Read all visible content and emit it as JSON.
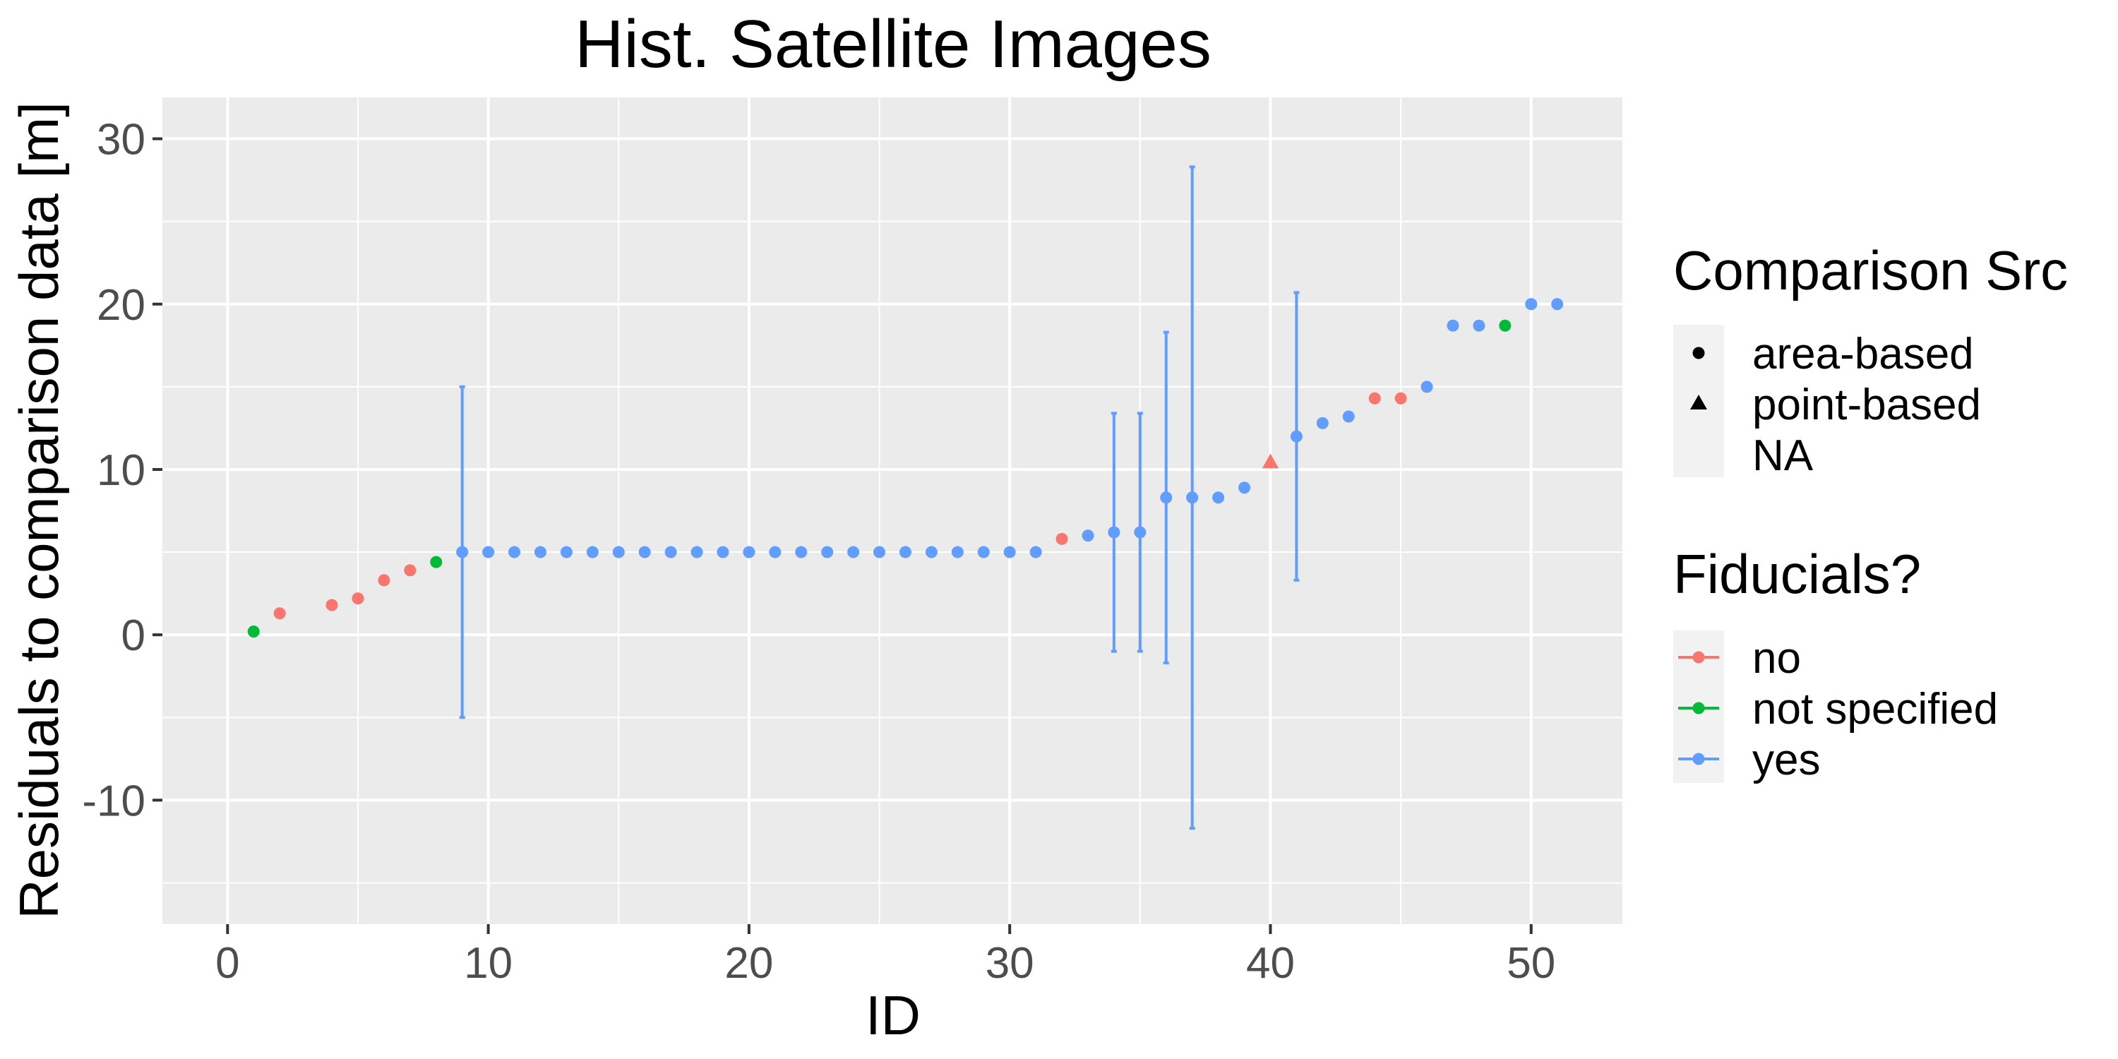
{
  "chart_data": {
    "type": "scatter",
    "title": "Hist. Satellite Images",
    "xlabel": "ID",
    "ylabel": "Residuals to comparison data [m]",
    "xlim": [
      -2.5,
      53.5
    ],
    "ylim": [
      -17.5,
      32.5
    ],
    "x_ticks": [
      0,
      10,
      20,
      30,
      40,
      50
    ],
    "y_ticks": [
      -10,
      0,
      10,
      20,
      30
    ],
    "x_tick_labels": [
      "0",
      "10",
      "20",
      "30",
      "40",
      "50"
    ],
    "y_tick_labels": [
      "-10",
      "0",
      "10",
      "20",
      "30"
    ],
    "grid": true,
    "legend_position": "right",
    "colors": {
      "no": "#f8766d",
      "not specified": "#00ba38",
      "yes": "#619cff",
      "panel": "#ebebeb",
      "grid": "#ffffff"
    },
    "legends": {
      "shape": {
        "title": "Comparison Src",
        "items": [
          {
            "label": "area-based",
            "shape": "circle"
          },
          {
            "label": "point-based",
            "shape": "triangle"
          },
          {
            "label": "NA",
            "shape": "none"
          }
        ]
      },
      "color": {
        "title": "Fiducials?",
        "items": [
          {
            "label": "no",
            "key": "no"
          },
          {
            "label": "not specified",
            "key": "not specified"
          },
          {
            "label": "yes",
            "key": "yes"
          }
        ]
      }
    },
    "points": [
      {
        "x": 1,
        "y": 0.2,
        "fid": "not specified",
        "shape": "circle"
      },
      {
        "x": 2,
        "y": 1.3,
        "fid": "no",
        "shape": "circle"
      },
      {
        "x": 4,
        "y": 1.8,
        "fid": "no",
        "shape": "circle"
      },
      {
        "x": 5,
        "y": 2.2,
        "fid": "no",
        "shape": "circle"
      },
      {
        "x": 6,
        "y": 3.3,
        "fid": "no",
        "shape": "circle"
      },
      {
        "x": 7,
        "y": 3.9,
        "fid": "no",
        "shape": "circle"
      },
      {
        "x": 8,
        "y": 4.4,
        "fid": "not specified",
        "shape": "circle"
      },
      {
        "x": 9,
        "y": 5.0,
        "fid": "yes",
        "shape": "circle",
        "ymin": -5.0,
        "ymax": 15.0
      },
      {
        "x": 10,
        "y": 5.0,
        "fid": "yes",
        "shape": "circle"
      },
      {
        "x": 11,
        "y": 5.0,
        "fid": "yes",
        "shape": "circle"
      },
      {
        "x": 12,
        "y": 5.0,
        "fid": "yes",
        "shape": "circle"
      },
      {
        "x": 13,
        "y": 5.0,
        "fid": "yes",
        "shape": "circle"
      },
      {
        "x": 14,
        "y": 5.0,
        "fid": "yes",
        "shape": "circle"
      },
      {
        "x": 15,
        "y": 5.0,
        "fid": "yes",
        "shape": "circle"
      },
      {
        "x": 16,
        "y": 5.0,
        "fid": "yes",
        "shape": "circle"
      },
      {
        "x": 17,
        "y": 5.0,
        "fid": "yes",
        "shape": "circle"
      },
      {
        "x": 18,
        "y": 5.0,
        "fid": "yes",
        "shape": "circle"
      },
      {
        "x": 19,
        "y": 5.0,
        "fid": "yes",
        "shape": "circle"
      },
      {
        "x": 20,
        "y": 5.0,
        "fid": "yes",
        "shape": "circle"
      },
      {
        "x": 21,
        "y": 5.0,
        "fid": "yes",
        "shape": "circle"
      },
      {
        "x": 22,
        "y": 5.0,
        "fid": "yes",
        "shape": "circle"
      },
      {
        "x": 23,
        "y": 5.0,
        "fid": "yes",
        "shape": "circle"
      },
      {
        "x": 24,
        "y": 5.0,
        "fid": "yes",
        "shape": "circle"
      },
      {
        "x": 25,
        "y": 5.0,
        "fid": "yes",
        "shape": "circle"
      },
      {
        "x": 26,
        "y": 5.0,
        "fid": "yes",
        "shape": "circle"
      },
      {
        "x": 27,
        "y": 5.0,
        "fid": "yes",
        "shape": "circle"
      },
      {
        "x": 28,
        "y": 5.0,
        "fid": "yes",
        "shape": "circle"
      },
      {
        "x": 29,
        "y": 5.0,
        "fid": "yes",
        "shape": "circle"
      },
      {
        "x": 30,
        "y": 5.0,
        "fid": "yes",
        "shape": "circle"
      },
      {
        "x": 31,
        "y": 5.0,
        "fid": "yes",
        "shape": "circle"
      },
      {
        "x": 32,
        "y": 5.8,
        "fid": "no",
        "shape": "circle"
      },
      {
        "x": 33,
        "y": 6.0,
        "fid": "yes",
        "shape": "circle"
      },
      {
        "x": 34,
        "y": 6.2,
        "fid": "yes",
        "shape": "circle",
        "ymin": -1.0,
        "ymax": 13.4
      },
      {
        "x": 35,
        "y": 6.2,
        "fid": "yes",
        "shape": "circle",
        "ymin": -1.0,
        "ymax": 13.4
      },
      {
        "x": 36,
        "y": 8.3,
        "fid": "yes",
        "shape": "circle",
        "ymin": -1.7,
        "ymax": 18.3
      },
      {
        "x": 37,
        "y": 8.3,
        "fid": "yes",
        "shape": "circle",
        "ymin": -11.7,
        "ymax": 28.3
      },
      {
        "x": 38,
        "y": 8.3,
        "fid": "yes",
        "shape": "circle"
      },
      {
        "x": 39,
        "y": 8.9,
        "fid": "yes",
        "shape": "circle"
      },
      {
        "x": 40,
        "y": 10.4,
        "fid": "no",
        "shape": "triangle"
      },
      {
        "x": 41,
        "y": 12.0,
        "fid": "yes",
        "shape": "circle",
        "ymin": 3.3,
        "ymax": 20.7
      },
      {
        "x": 42,
        "y": 12.8,
        "fid": "yes",
        "shape": "circle"
      },
      {
        "x": 43,
        "y": 13.2,
        "fid": "yes",
        "shape": "circle"
      },
      {
        "x": 44,
        "y": 14.3,
        "fid": "no",
        "shape": "circle"
      },
      {
        "x": 45,
        "y": 14.3,
        "fid": "no",
        "shape": "circle"
      },
      {
        "x": 46,
        "y": 15.0,
        "fid": "yes",
        "shape": "circle"
      },
      {
        "x": 47,
        "y": 18.7,
        "fid": "yes",
        "shape": "circle"
      },
      {
        "x": 48,
        "y": 18.7,
        "fid": "yes",
        "shape": "circle"
      },
      {
        "x": 49,
        "y": 18.7,
        "fid": "not specified",
        "shape": "circle"
      },
      {
        "x": 50,
        "y": 20.0,
        "fid": "yes",
        "shape": "circle"
      },
      {
        "x": 51,
        "y": 20.0,
        "fid": "yes",
        "shape": "circle"
      }
    ]
  }
}
